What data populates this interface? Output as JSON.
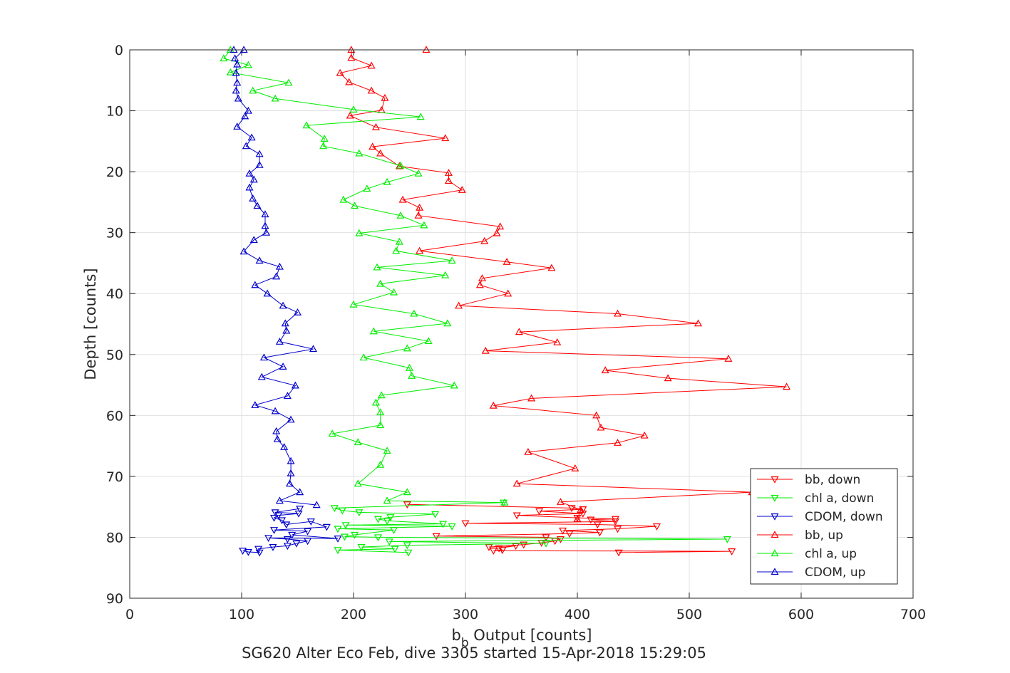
{
  "chart_data": {
    "type": "line",
    "title": "",
    "xlabel": "b_b Output [counts]",
    "ylabel": "Depth [counts]",
    "subtitle": "SG620 Alter Eco Feb, dive 3305 started 15-Apr-2018 15:29:05",
    "xlim": [
      0,
      700
    ],
    "ylim": [
      0,
      90
    ],
    "y_reversed": true,
    "xticks": [
      0,
      100,
      200,
      300,
      400,
      500,
      600,
      700
    ],
    "yticks": [
      0,
      10,
      20,
      30,
      40,
      50,
      60,
      70,
      80,
      90
    ],
    "grid": true,
    "legend_position": "bottom-right",
    "series": [
      {
        "name": "bb, down",
        "color": "#ff0000",
        "marker": "triangle-down",
        "points": [
          [
            437,
            82.5
          ],
          [
            538,
            82.3
          ],
          [
            325,
            82.2
          ],
          [
            333,
            82.1
          ],
          [
            330,
            81.8
          ],
          [
            345,
            81.4
          ],
          [
            321,
            81.6
          ],
          [
            352,
            81.2
          ],
          [
            368,
            80.9
          ],
          [
            380,
            80.6
          ],
          [
            385,
            80.3
          ],
          [
            372,
            80.0
          ],
          [
            274,
            79.8
          ],
          [
            393,
            79.4
          ],
          [
            420,
            79.2
          ],
          [
            387,
            78.9
          ],
          [
            436,
            78.6
          ],
          [
            471,
            78.2
          ],
          [
            418,
            77.9
          ],
          [
            300,
            77.7
          ],
          [
            434,
            77.4
          ],
          [
            412,
            77.1
          ],
          [
            434,
            77.0
          ],
          [
            400,
            76.8
          ],
          [
            346,
            76.4
          ],
          [
            405,
            76.1
          ],
          [
            366,
            75.7
          ],
          [
            405,
            75.4
          ],
          [
            395,
            75.2
          ],
          [
            248,
            74.6
          ]
        ]
      },
      {
        "name": "chl a, down",
        "color": "#00ee00",
        "marker": "triangle-down",
        "points": [
          [
            249,
            82.5
          ],
          [
            186,
            82.1
          ],
          [
            237,
            81.9
          ],
          [
            207,
            81.6
          ],
          [
            248,
            81.3
          ],
          [
            372,
            81.0
          ],
          [
            232,
            80.7
          ],
          [
            534,
            80.3
          ],
          [
            222,
            80.0
          ],
          [
            192,
            79.9
          ],
          [
            201,
            79.6
          ],
          [
            236,
            78.8
          ],
          [
            186,
            78.6
          ],
          [
            288,
            78.2
          ],
          [
            193,
            78.0
          ],
          [
            280,
            77.8
          ],
          [
            230,
            77.3
          ],
          [
            222,
            77.0
          ],
          [
            233,
            76.7
          ],
          [
            273,
            76.2
          ],
          [
            205,
            75.9
          ],
          [
            190,
            75.6
          ],
          [
            183,
            75.2
          ],
          [
            334,
            74.3
          ]
        ]
      },
      {
        "name": "CDOM, down",
        "color": "#0000cc",
        "marker": "triangle-down",
        "points": [
          [
            101,
            82.2
          ],
          [
            106,
            82.4
          ],
          [
            116,
            82.5
          ],
          [
            115,
            81.9
          ],
          [
            128,
            81.6
          ],
          [
            141,
            81.4
          ],
          [
            149,
            81.0
          ],
          [
            159,
            80.6
          ],
          [
            141,
            80.3
          ],
          [
            124,
            80.1
          ],
          [
            186,
            80.2
          ],
          [
            145,
            79.6
          ],
          [
            159,
            79.0
          ],
          [
            129,
            78.8
          ],
          [
            176,
            78.3
          ],
          [
            162,
            77.4
          ],
          [
            140,
            77.9
          ],
          [
            136,
            77.2
          ],
          [
            129,
            76.8
          ],
          [
            133,
            76.4
          ],
          [
            151,
            76.1
          ],
          [
            130,
            75.9
          ],
          [
            152,
            75.3
          ]
        ]
      },
      {
        "name": "bb, up",
        "color": "#ff0000",
        "marker": "triangle-up",
        "points": [
          [
            265,
            0
          ],
          [
            198,
            0
          ],
          [
            198,
            1.3
          ],
          [
            216,
            2.6
          ],
          [
            188,
            3.8
          ],
          [
            196,
            5.3
          ],
          [
            216,
            6.7
          ],
          [
            228,
            7.9
          ],
          [
            225,
            9.9
          ],
          [
            197,
            10.8
          ],
          [
            220,
            12.7
          ],
          [
            282,
            14.5
          ],
          [
            217,
            15.9
          ],
          [
            224,
            17.0
          ],
          [
            241,
            19.1
          ],
          [
            285,
            20.2
          ],
          [
            285,
            21.5
          ],
          [
            297,
            23.0
          ],
          [
            244,
            24.6
          ],
          [
            259,
            25.9
          ],
          [
            258,
            27.2
          ],
          [
            331,
            29.0
          ],
          [
            328,
            30.1
          ],
          [
            317,
            31.4
          ],
          [
            259,
            33.0
          ],
          [
            337,
            34.8
          ],
          [
            377,
            35.8
          ],
          [
            315,
            37.5
          ],
          [
            313,
            38.6
          ],
          [
            338,
            40.0
          ],
          [
            294,
            42.0
          ],
          [
            436,
            43.3
          ],
          [
            508,
            44.9
          ],
          [
            348,
            46.3
          ],
          [
            382,
            48.0
          ],
          [
            318,
            49.4
          ],
          [
            535,
            50.7
          ],
          [
            425,
            52.6
          ],
          [
            481,
            53.9
          ],
          [
            587,
            55.3
          ],
          [
            359,
            57.2
          ],
          [
            325,
            58.4
          ],
          [
            417,
            60.0
          ],
          [
            421,
            62.0
          ],
          [
            460,
            63.3
          ],
          [
            436,
            64.5
          ],
          [
            356,
            66.0
          ],
          [
            398,
            68.7
          ],
          [
            346,
            71.2
          ],
          [
            556,
            72.6
          ],
          [
            385,
            74.2
          ],
          [
            403,
            75.5
          ],
          [
            400,
            77.0
          ]
        ]
      },
      {
        "name": "chl a, up",
        "color": "#00ee00",
        "marker": "triangle-up",
        "points": [
          [
            90,
            0
          ],
          [
            84,
            1.4
          ],
          [
            106,
            2.5
          ],
          [
            90,
            3.7
          ],
          [
            142,
            5.4
          ],
          [
            110,
            6.7
          ],
          [
            130,
            8.0
          ],
          [
            200,
            9.8
          ],
          [
            260,
            11.0
          ],
          [
            158,
            12.4
          ],
          [
            174,
            14.6
          ],
          [
            173,
            15.8
          ],
          [
            205,
            17.0
          ],
          [
            242,
            19.0
          ],
          [
            258,
            20.3
          ],
          [
            230,
            21.7
          ],
          [
            212,
            22.8
          ],
          [
            191,
            24.6
          ],
          [
            201,
            25.6
          ],
          [
            242,
            27.2
          ],
          [
            263,
            28.8
          ],
          [
            205,
            30.1
          ],
          [
            241,
            31.5
          ],
          [
            238,
            33.0
          ],
          [
            288,
            34.6
          ],
          [
            221,
            35.7
          ],
          [
            282,
            37.0
          ],
          [
            224,
            38.4
          ],
          [
            236,
            39.8
          ],
          [
            200,
            41.8
          ],
          [
            254,
            43.3
          ],
          [
            284,
            44.9
          ],
          [
            218,
            46.2
          ],
          [
            267,
            47.8
          ],
          [
            248,
            49.0
          ],
          [
            209,
            50.5
          ],
          [
            250,
            52.2
          ],
          [
            252,
            53.5
          ],
          [
            290,
            55.1
          ],
          [
            225,
            56.7
          ],
          [
            220,
            57.9
          ],
          [
            224,
            59.5
          ],
          [
            224,
            61.6
          ],
          [
            181,
            63.0
          ],
          [
            204,
            64.4
          ],
          [
            230,
            65.8
          ],
          [
            224,
            68.1
          ],
          [
            204,
            71.2
          ],
          [
            248,
            72.6
          ],
          [
            230,
            74.0
          ],
          [
            335,
            74.3
          ]
        ]
      },
      {
        "name": "CDOM, up",
        "color": "#0000cc",
        "marker": "triangle-up",
        "points": [
          [
            93,
            0
          ],
          [
            102,
            0
          ],
          [
            94,
            1.4
          ],
          [
            96,
            2.4
          ],
          [
            95,
            3.8
          ],
          [
            96,
            5.4
          ],
          [
            95,
            6.7
          ],
          [
            97,
            8.0
          ],
          [
            106,
            10.0
          ],
          [
            103,
            10.9
          ],
          [
            96,
            12.6
          ],
          [
            109,
            14.4
          ],
          [
            104,
            15.8
          ],
          [
            116,
            17.1
          ],
          [
            116,
            18.9
          ],
          [
            107,
            20.3
          ],
          [
            111,
            21.3
          ],
          [
            107,
            22.6
          ],
          [
            110,
            24.4
          ],
          [
            114,
            25.6
          ],
          [
            121,
            27.0
          ],
          [
            121,
            28.9
          ],
          [
            122,
            30.0
          ],
          [
            111,
            31.2
          ],
          [
            102,
            33.1
          ],
          [
            116,
            34.6
          ],
          [
            134,
            35.6
          ],
          [
            131,
            37.2
          ],
          [
            112,
            38.6
          ],
          [
            123,
            40.0
          ],
          [
            137,
            42.0
          ],
          [
            150,
            43.1
          ],
          [
            139,
            44.9
          ],
          [
            140,
            46.1
          ],
          [
            134,
            47.9
          ],
          [
            164,
            49.1
          ],
          [
            120,
            50.5
          ],
          [
            137,
            52.0
          ],
          [
            118,
            53.7
          ],
          [
            148,
            55.1
          ],
          [
            141,
            56.8
          ],
          [
            112,
            58.3
          ],
          [
            130,
            59.3
          ],
          [
            144,
            60.7
          ],
          [
            131,
            62.6
          ],
          [
            132,
            63.9
          ],
          [
            138,
            65.2
          ],
          [
            144,
            67.5
          ],
          [
            144,
            69.5
          ],
          [
            143,
            71.2
          ],
          [
            152,
            72.6
          ],
          [
            134,
            74.0
          ],
          [
            167,
            74.7
          ]
        ]
      }
    ]
  }
}
